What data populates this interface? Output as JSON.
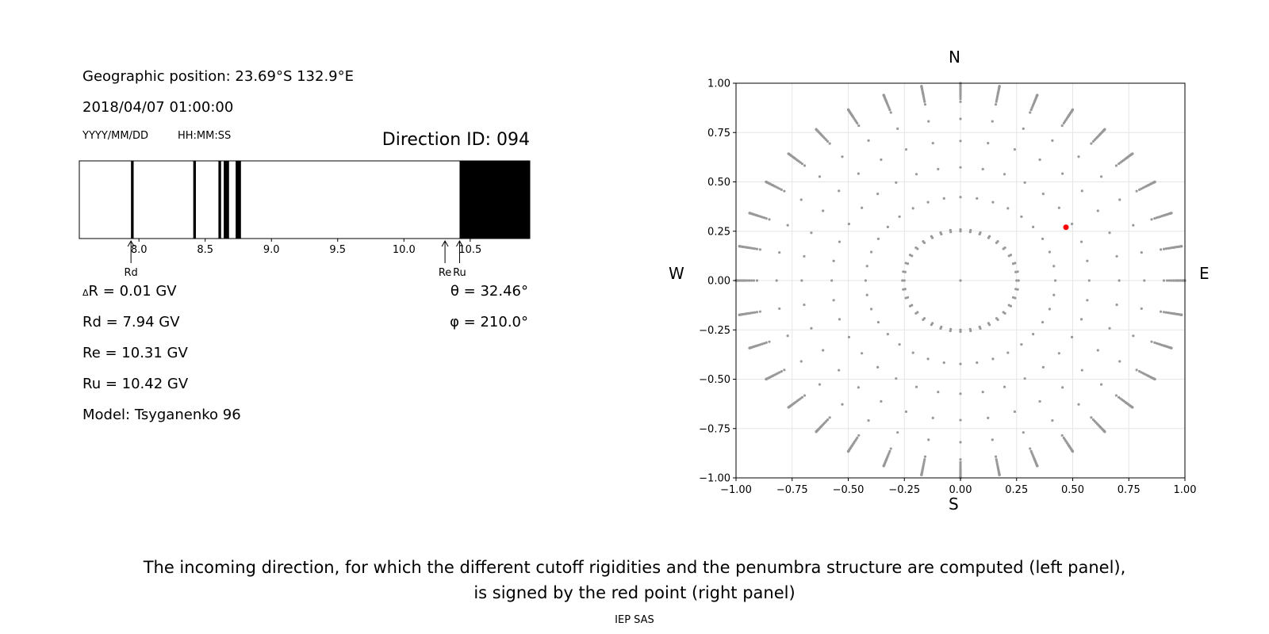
{
  "left_panel": {
    "geo_position": "Geographic position: 23.69°S 132.9°E",
    "datetime": "2018/04/07 01:00:00",
    "date_format": "YYYY/MM/DD",
    "time_format": "HH:MM:SS",
    "direction_id": "Direction ID: 094",
    "delta_r": "R = 0.01 GV",
    "delta_symbol": "Δ",
    "rd": "Rd = 7.94 GV",
    "re": "Re = 10.31 GV",
    "ru": "Ru = 10.42 GV",
    "model": "Model: Tsyganenko 96",
    "theta": "θ = 32.46°",
    "phi": "φ = 210.0°"
  },
  "right_panel": {
    "north": "N",
    "south": "S",
    "west": "W",
    "east": "E"
  },
  "caption": {
    "line1": "The incoming direction, for which the different cutoff rigidities and the penumbra structure are computed (left panel),",
    "line2": "is signed by the red point (right panel)"
  },
  "footer": "IEP SAS",
  "chart_data": [
    {
      "type": "bar",
      "description_role": "penumbra",
      "xlim": [
        7.55,
        10.95
      ],
      "xticks": [
        8.0,
        8.5,
        9.0,
        9.5,
        10.0,
        10.5
      ],
      "xtick_labels": [
        "8.0",
        "8.5",
        "9.0",
        "9.5",
        "10.0",
        "10.5"
      ],
      "forbidden_bands": [
        [
          7.94,
          7.96
        ],
        [
          8.41,
          8.43
        ],
        [
          8.6,
          8.62
        ],
        [
          8.64,
          8.68
        ],
        [
          8.73,
          8.77
        ],
        [
          10.42,
          10.95
        ]
      ],
      "markers": [
        {
          "label": "Rd",
          "value": 7.94
        },
        {
          "label": "Re",
          "value": 10.31
        },
        {
          "label": "Ru",
          "value": 10.42
        }
      ],
      "colors": {
        "band": "#000000",
        "background": "#ffffff"
      }
    },
    {
      "type": "scatter",
      "xlim": [
        -1.0,
        1.0
      ],
      "ylim": [
        -1.0,
        1.0
      ],
      "xticks": [
        "-1.00",
        "-0.75",
        "-0.50",
        "-0.25",
        "0.00",
        "0.25",
        "0.50",
        "0.75",
        "1.00"
      ],
      "yticks": [
        "-1.00",
        "-0.75",
        "-0.50",
        "-0.25",
        "0.00",
        "0.25",
        "0.50",
        "0.75",
        "1.00"
      ],
      "grid": true,
      "grid_zenith_deg": [
        0,
        15,
        25,
        35,
        45,
        55,
        65,
        75,
        85,
        90
      ],
      "grid_azimuth_step_deg": 10,
      "points_color": "#999999",
      "highlight": {
        "x": 0.47,
        "y": 0.27,
        "color": "#ff0000"
      }
    }
  ]
}
